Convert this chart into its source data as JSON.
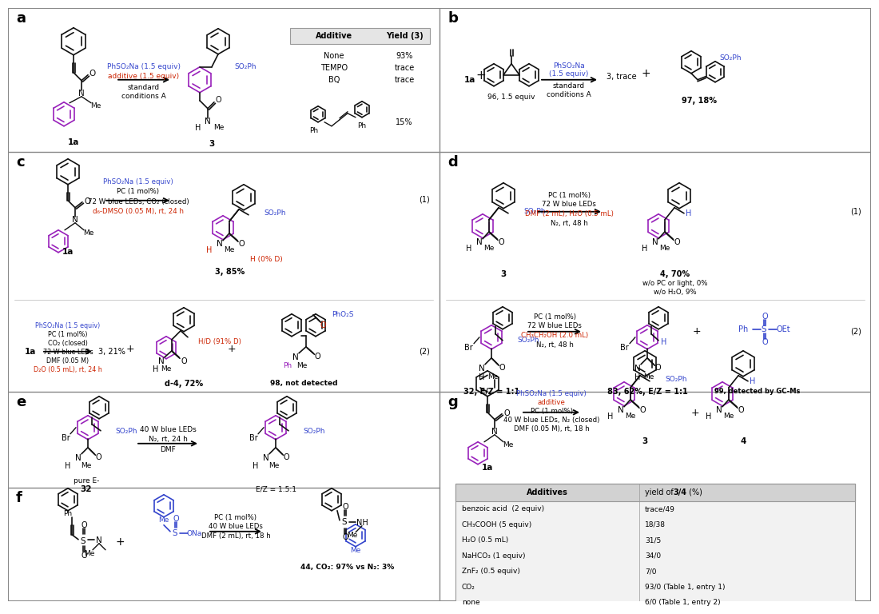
{
  "blue": "#3344cc",
  "red": "#cc2200",
  "purple": "#9922bb",
  "black": "#111111",
  "gray_line": "#888888",
  "gray_light": "#cccccc",
  "table_header_bg": "#d5d5d5",
  "table_bg": "#f0f0f0",
  "white": "#ffffff",
  "panel_a": {
    "table_header": [
      "Additive",
      "Yield (3)"
    ],
    "table_rows": [
      [
        "None",
        "93%"
      ],
      [
        "TEMPO",
        "trace"
      ],
      [
        "BQ",
        "trace"
      ]
    ]
  },
  "panel_g": {
    "table_rows": [
      [
        "benzoic acid  (2 equiv)",
        "trace/49"
      ],
      [
        "CH₃COOH (5 equiv)",
        "18/38"
      ],
      [
        "H₂O (0.5 mL)",
        "31/5"
      ],
      [
        "NaHCO₃ (1 equiv)",
        "34/0"
      ],
      [
        "ZnF₂ (0.5 equiv)",
        "7/0"
      ],
      [
        "CO₂",
        "93/0 (Table 1, entry 1)"
      ],
      [
        "none",
        "6/0 (Table 1, entry 2)"
      ]
    ]
  }
}
